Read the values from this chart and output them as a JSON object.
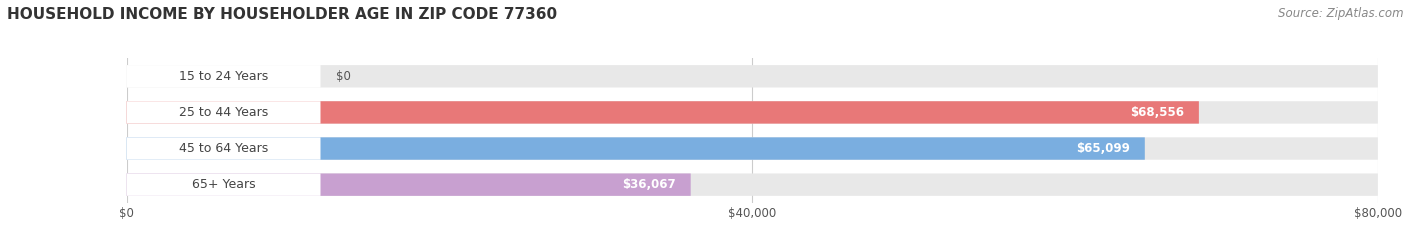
{
  "title": "HOUSEHOLD INCOME BY HOUSEHOLDER AGE IN ZIP CODE 77360",
  "source": "Source: ZipAtlas.com",
  "categories": [
    "15 to 24 Years",
    "25 to 44 Years",
    "45 to 64 Years",
    "65+ Years"
  ],
  "values": [
    0,
    68556,
    65099,
    36067
  ],
  "value_labels": [
    "$0",
    "$68,556",
    "$65,099",
    "$36,067"
  ],
  "bar_colors": [
    "#f0c080",
    "#e87878",
    "#7aaee0",
    "#c8a0d0"
  ],
  "bar_bg_color": "#e8e8e8",
  "label_bg_color": "#ffffff",
  "label_text_color": "#444444",
  "value_text_color_inside": "#ffffff",
  "value_text_color_outside": "#555555",
  "xmax": 80000,
  "xticks": [
    0,
    40000,
    80000
  ],
  "xtick_labels": [
    "$0",
    "$40,000",
    "$80,000"
  ],
  "background_color": "#ffffff",
  "title_fontsize": 11,
  "source_fontsize": 8.5,
  "label_fontsize": 9,
  "value_fontsize": 8.5,
  "tick_fontsize": 8.5
}
